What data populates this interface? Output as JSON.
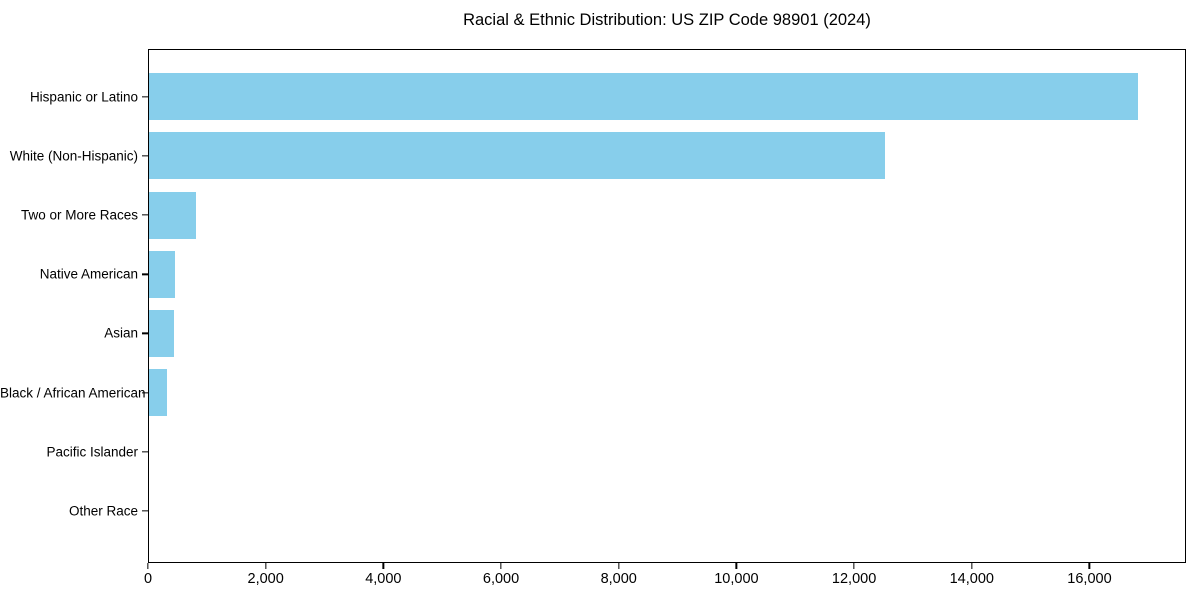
{
  "title": "Racial & Ethnic Distribution: US ZIP Code 98901 (2024)",
  "chart_data": {
    "type": "bar",
    "orientation": "horizontal",
    "title": "Racial & Ethnic Distribution: US ZIP Code 98901 (2024)",
    "categories": [
      "Hispanic or Latino",
      "White (Non-Hispanic)",
      "Two or More Races",
      "Native American",
      "Asian",
      "Black / African American",
      "Pacific Islander",
      "Other Race"
    ],
    "values": [
      16800,
      12500,
      800,
      450,
      420,
      310,
      0,
      0
    ],
    "xlabel": "",
    "ylabel": "",
    "xlim": [
      0,
      17640
    ],
    "x_ticks": [
      0,
      2000,
      4000,
      6000,
      8000,
      10000,
      12000,
      14000,
      16000
    ],
    "x_tick_labels": [
      "0",
      "2,000",
      "4,000",
      "6,000",
      "8,000",
      "10,000",
      "12,000",
      "14,000",
      "16,000"
    ],
    "bar_color": "#87CEEB",
    "text_color": "#000000",
    "background_color": "#FFFFFF",
    "grid": false,
    "legend": null
  }
}
